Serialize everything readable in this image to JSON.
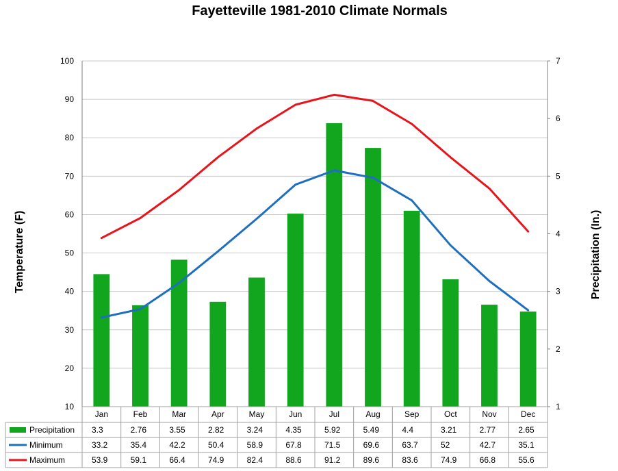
{
  "chart_data": {
    "type": "bar",
    "title": "Fayetteville 1981-2010 Climate Normals",
    "y_left_label": "Temperature (F)",
    "y_right_label": "Precipitation  (In.)",
    "y_left_range": [
      10,
      100
    ],
    "y_left_ticks": [
      "100",
      "90",
      "80",
      "70",
      "60",
      "50",
      "40",
      "30",
      "20",
      "10"
    ],
    "y_right_range": [
      1,
      7
    ],
    "y_right_ticks": [
      "7",
      "6",
      "5",
      "4",
      "3",
      "2",
      "1"
    ],
    "grid": "horizontal",
    "data_table": true,
    "categories": [
      "Jan",
      "Feb",
      "Mar",
      "Apr",
      "May",
      "Jun",
      "Jul",
      "Aug",
      "Sep",
      "Oct",
      "Nov",
      "Dec"
    ],
    "series": [
      {
        "name": "Precipitation",
        "type": "bar",
        "axis": "right",
        "color": "#12A51E",
        "values": [
          3.3,
          2.76,
          3.55,
          2.82,
          3.24,
          4.35,
          5.92,
          5.49,
          4.4,
          3.21,
          2.77,
          2.65
        ],
        "labels": [
          "3.3",
          "2.76",
          "3.55",
          "2.82",
          "3.24",
          "4.35",
          "5.92",
          "5.49",
          "4.4",
          "3.21",
          "2.77",
          "2.65"
        ]
      },
      {
        "name": "Minimum",
        "type": "line",
        "axis": "left",
        "color": "#1F6FC0",
        "values": [
          33.2,
          35.4,
          42.2,
          50.4,
          58.9,
          67.8,
          71.5,
          69.6,
          63.7,
          52,
          42.7,
          35.1
        ],
        "labels": [
          "33.2",
          "35.4",
          "42.2",
          "50.4",
          "58.9",
          "67.8",
          "71.5",
          "69.6",
          "63.7",
          "52",
          "42.7",
          "35.1"
        ]
      },
      {
        "name": "Maximum",
        "type": "line",
        "axis": "left",
        "color": "#E8141B",
        "values": [
          53.9,
          59.1,
          66.4,
          74.9,
          82.4,
          88.6,
          91.2,
          89.6,
          83.6,
          74.9,
          66.8,
          55.6
        ],
        "labels": [
          "53.9",
          "59.1",
          "66.4",
          "74.9",
          "82.4",
          "88.6",
          "91.2",
          "89.6",
          "83.6",
          "74.9",
          "66.8",
          "55.6"
        ]
      }
    ]
  }
}
